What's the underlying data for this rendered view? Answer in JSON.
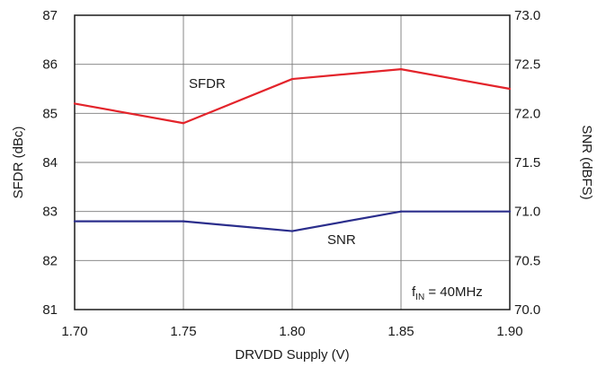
{
  "chart_data": {
    "type": "line",
    "xlabel": "DRVDD Supply (V)",
    "ylabel_left": "SFDR (dBc)",
    "ylabel_right": "SNR (dBFS)",
    "x": [
      1.7,
      1.75,
      1.8,
      1.85,
      1.9
    ],
    "x_ticks": [
      "1.70",
      "1.75",
      "1.80",
      "1.85",
      "1.90"
    ],
    "xlim": [
      1.7,
      1.9
    ],
    "ylim_left": [
      81,
      87
    ],
    "ylim_right": [
      70.0,
      73.0
    ],
    "y_ticks_left": [
      "81",
      "82",
      "83",
      "84",
      "85",
      "86",
      "87"
    ],
    "y_ticks_right": [
      "70.0",
      "70.5",
      "71.0",
      "71.5",
      "72.0",
      "72.5",
      "73.0"
    ],
    "grid": true,
    "series": [
      {
        "name": "SFDR",
        "axis": "left",
        "color": "#e3242b",
        "values": [
          85.2,
          84.8,
          85.7,
          85.9,
          85.5
        ]
      },
      {
        "name": "SNR",
        "axis": "right",
        "color": "#2b2e8c",
        "values": [
          70.9,
          70.9,
          70.8,
          71.0,
          71.0
        ]
      }
    ],
    "annotation": {
      "main": "f",
      "sub": "IN",
      "rest": " = 40MHz"
    }
  }
}
